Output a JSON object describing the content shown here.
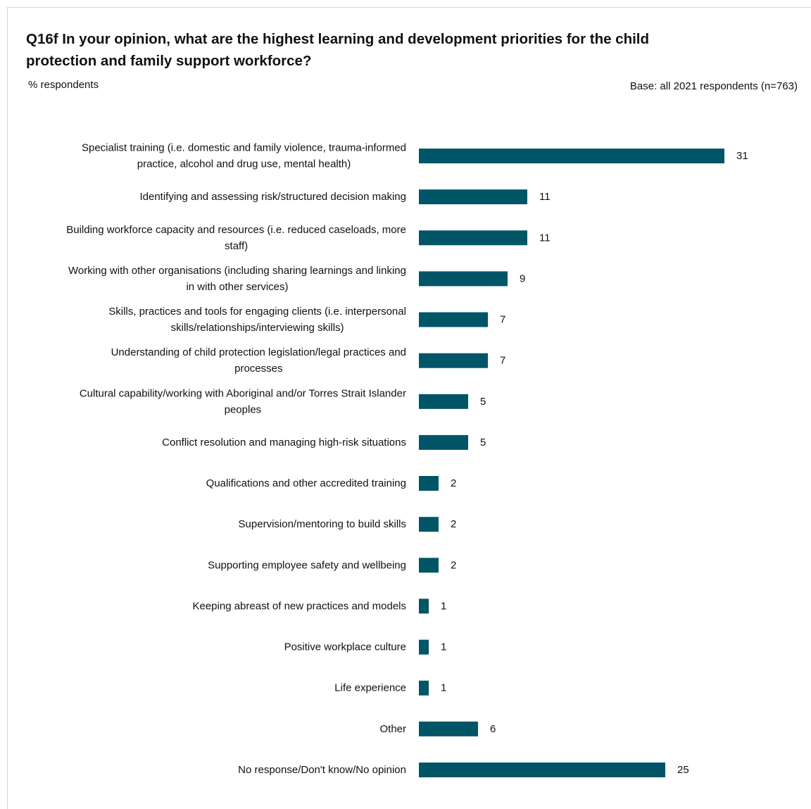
{
  "header": {
    "title": "Q16f In your opinion, what are the highest learning and development priorities for the child protection and family support workforce?",
    "subtitle": "% respondents",
    "base_note": "Base: all 2021 respondents (n=763)"
  },
  "colors": {
    "bar": "#005566",
    "text": "#111111",
    "frame": "#d4d4d4"
  },
  "chart_data": {
    "type": "bar",
    "orientation": "horizontal",
    "title": "Q16f In your opinion, what are the highest learning and development priorities for the child protection and family support workforce?",
    "xlabel": "",
    "ylabel": "",
    "grid": false,
    "legend": "none",
    "xlim": [
      0,
      31
    ],
    "categories": [
      "Specialist training (i.e. domestic and family violence, trauma-informed practice, alcohol and drug use, mental health)",
      "Identifying and assessing risk/structured decision making",
      "Building workforce capacity and resources (i.e. reduced caseloads, more staff)",
      "Working with other organisations (including sharing learnings and linking in with other services)",
      "Skills, practices and tools for engaging clients (i.e. interpersonal skills/relationships/interviewing skills)",
      "Understanding of child protection legislation/legal practices and processes",
      "Cultural capability/working with Aboriginal and/or Torres Strait Islander peoples",
      "Conflict resolution and managing high-risk situations",
      "Qualifications and other accredited training",
      "Supervision/mentoring to build skills",
      "Supporting employee safety and wellbeing",
      "Keeping abreast of new practices and models",
      "Positive workplace culture",
      "Life experience",
      "Other",
      "No response/Don't know/No opinion"
    ],
    "label_lines": [
      [
        "Specialist training (i.e. domestic and family violence, trauma-informed",
        "practice, alcohol and drug use, mental health)"
      ],
      [
        "Identifying and assessing risk/structured decision making"
      ],
      [
        "Building workforce capacity and resources (i.e. reduced caseloads, more",
        "staff)"
      ],
      [
        "Working with other organisations (including sharing learnings and linking",
        "in with other services)"
      ],
      [
        "Skills, practices and tools for engaging clients (i.e. interpersonal",
        "skills/relationships/interviewing skills)"
      ],
      [
        "Understanding of child protection legislation/legal practices and",
        "processes"
      ],
      [
        "Cultural capability/working with Aboriginal and/or Torres Strait Islander",
        "peoples"
      ],
      [
        "Conflict resolution and managing high-risk situations"
      ],
      [
        "Qualifications and other accredited training"
      ],
      [
        "Supervision/mentoring to build skills"
      ],
      [
        "Supporting employee safety and wellbeing"
      ],
      [
        "Keeping abreast of new practices and models"
      ],
      [
        "Positive workplace culture"
      ],
      [
        "Life experience"
      ],
      [
        "Other"
      ],
      [
        "No response/Don't know/No opinion"
      ]
    ],
    "values": [
      31,
      11,
      11,
      9,
      7,
      7,
      5,
      5,
      2,
      2,
      2,
      1,
      1,
      1,
      6,
      25
    ],
    "data_labels": [
      "31",
      "11",
      "11",
      "9",
      "7",
      "7",
      "5",
      "5",
      "2",
      "2",
      "2",
      "1",
      "1",
      "1",
      "6",
      "25"
    ]
  }
}
